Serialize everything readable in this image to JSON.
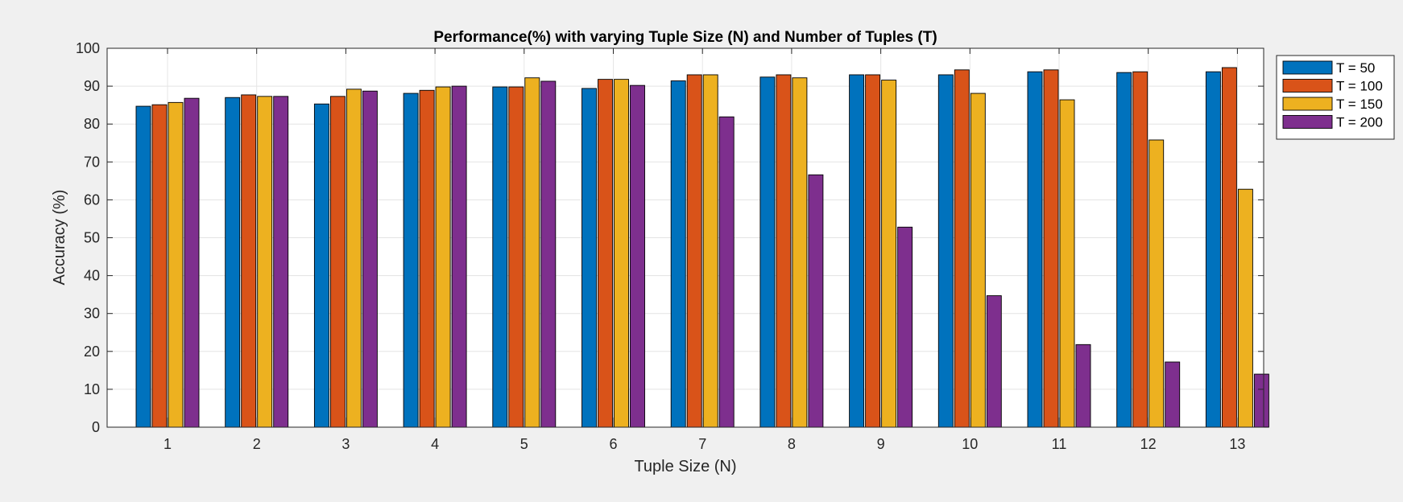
{
  "chart_data": {
    "type": "bar",
    "title": "Performance(%) with varying Tuple Size (N) and Number of Tuples (T)",
    "xlabel": "Tuple Size (N)",
    "ylabel": "Accuracy (%)",
    "ylim": [
      0,
      100
    ],
    "yticks": [
      0,
      10,
      20,
      30,
      40,
      50,
      60,
      70,
      80,
      90,
      100
    ],
    "categories": [
      "1",
      "2",
      "3",
      "4",
      "5",
      "6",
      "7",
      "8",
      "9",
      "10",
      "11",
      "12",
      "13"
    ],
    "grid": true,
    "legend_position": "outside-top-right",
    "series": [
      {
        "name": "T = 50",
        "color": "#0072bd",
        "values": [
          84.7,
          87.0,
          85.3,
          88.1,
          89.8,
          89.4,
          91.4,
          92.4,
          93.0,
          93.0,
          93.8,
          93.6,
          93.8
        ]
      },
      {
        "name": "T = 100",
        "color": "#d95319",
        "values": [
          85.1,
          87.7,
          87.3,
          88.9,
          89.8,
          91.8,
          93.0,
          93.0,
          93.0,
          94.3,
          94.3,
          93.8,
          94.9
        ]
      },
      {
        "name": "T = 150",
        "color": "#edb120",
        "values": [
          85.7,
          87.3,
          89.2,
          89.8,
          92.2,
          91.8,
          93.0,
          92.2,
          91.6,
          88.1,
          86.4,
          75.8,
          62.8
        ]
      },
      {
        "name": "T = 200",
        "color": "#7e2f8e",
        "values": [
          86.8,
          87.3,
          88.7,
          90.0,
          91.3,
          90.2,
          81.9,
          66.6,
          52.8,
          34.7,
          21.8,
          17.2,
          14.0
        ]
      }
    ]
  }
}
